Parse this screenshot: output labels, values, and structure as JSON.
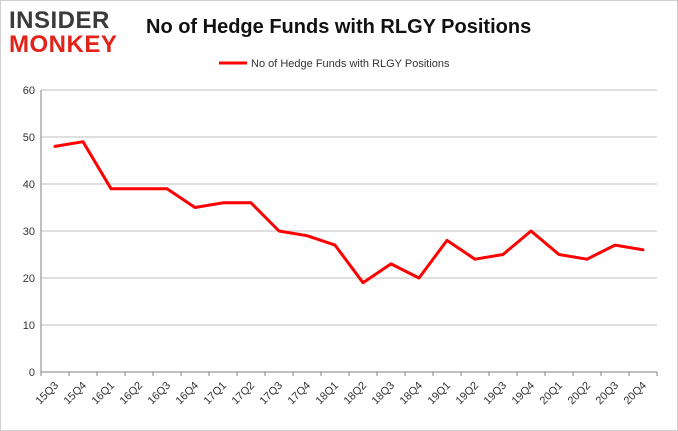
{
  "logo": {
    "line1": "INSIDER",
    "line2": "MONKEY"
  },
  "colors": {
    "series": "#ff0000",
    "grid": "#bfbfbf",
    "text": "#333333"
  },
  "chart_data": {
    "type": "line",
    "title": "No of Hedge Funds with RLGY Positions",
    "xlabel": "",
    "ylabel": "",
    "ylim": [
      0,
      60
    ],
    "yticks": [
      0,
      10,
      20,
      30,
      40,
      50,
      60
    ],
    "grid": true,
    "legend_position": "top-center",
    "categories": [
      "15Q3",
      "15Q4",
      "16Q1",
      "16Q2",
      "16Q3",
      "16Q4",
      "17Q1",
      "17Q2",
      "17Q3",
      "17Q4",
      "18Q1",
      "18Q2",
      "18Q3",
      "18Q4",
      "19Q1",
      "19Q2",
      "19Q3",
      "19Q4",
      "20Q1",
      "20Q2",
      "20Q3",
      "20Q4"
    ],
    "series": [
      {
        "name": "No of Hedge Funds with RLGY Positions",
        "values": [
          48,
          49,
          39,
          39,
          39,
          35,
          36,
          36,
          30,
          29,
          27,
          19,
          23,
          20,
          28,
          24,
          25,
          30,
          25,
          24,
          27,
          26
        ]
      }
    ]
  }
}
